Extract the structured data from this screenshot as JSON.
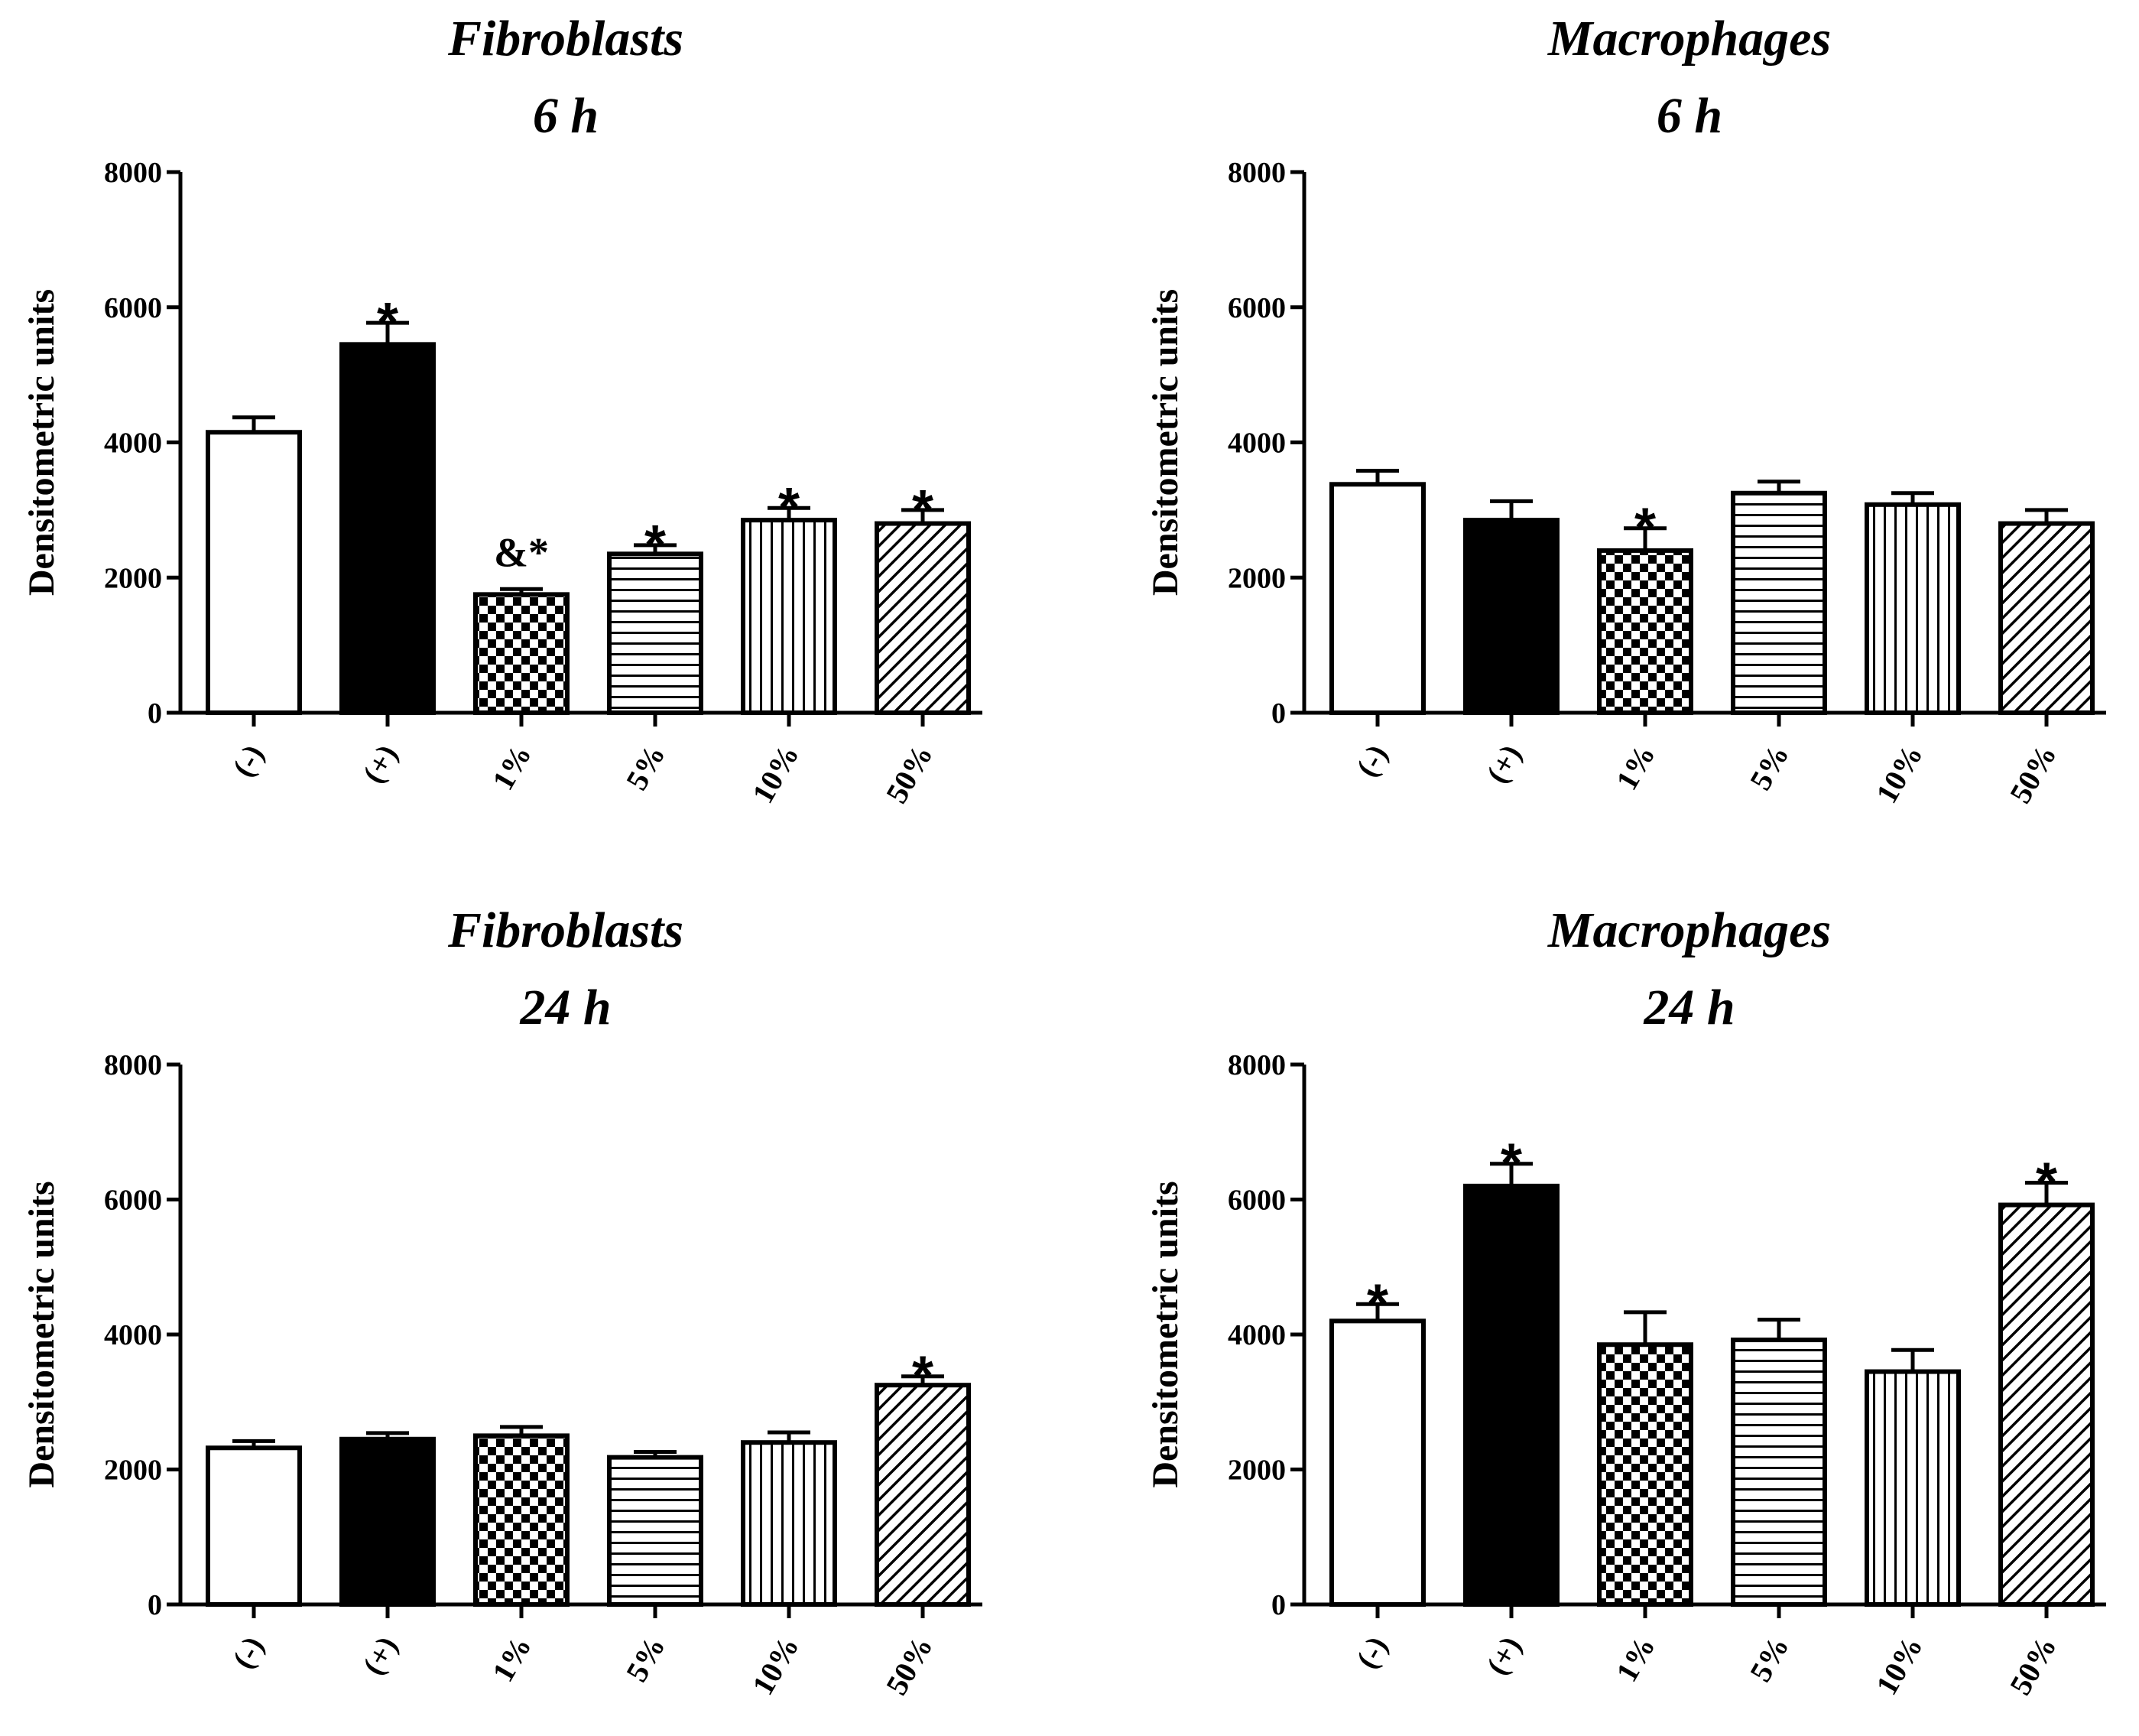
{
  "chart_data": [
    {
      "type": "bar",
      "title": [
        "Fibroblasts",
        "6 h"
      ],
      "ylabel": "Densitometric units",
      "xlabel": "",
      "ylim": [
        0,
        8000
      ],
      "yticks": [
        0,
        2000,
        4000,
        6000,
        8000
      ],
      "categories": [
        "(-)",
        "(+)",
        "1%",
        "5%",
        "10%",
        "50%"
      ],
      "values": [
        4150,
        5450,
        1750,
        2350,
        2850,
        2800
      ],
      "errors": [
        220,
        320,
        80,
        130,
        180,
        200
      ],
      "annotations": [
        "",
        "*",
        "&*",
        "*",
        "*",
        "*"
      ],
      "patterns": [
        "white",
        "black",
        "checker",
        "horizontal",
        "vertical",
        "diagonal"
      ]
    },
    {
      "type": "bar",
      "title": [
        "Macrophages",
        "6 h"
      ],
      "ylabel": "Densitometric units",
      "xlabel": "",
      "ylim": [
        0,
        8000
      ],
      "yticks": [
        0,
        2000,
        4000,
        6000,
        8000
      ],
      "categories": [
        "(-)",
        "(+)",
        "1%",
        "5%",
        "10%",
        "50%"
      ],
      "values": [
        3380,
        2850,
        2400,
        3250,
        3080,
        2800
      ],
      "errors": [
        200,
        280,
        330,
        170,
        170,
        200
      ],
      "annotations": [
        "",
        "",
        "*",
        "",
        "",
        ""
      ],
      "patterns": [
        "white",
        "black",
        "checker",
        "horizontal",
        "vertical",
        "diagonal"
      ]
    },
    {
      "type": "bar",
      "title": [
        "Fibroblasts",
        "24 h"
      ],
      "ylabel": "Densitometric units",
      "xlabel": "",
      "ylim": [
        0,
        8000
      ],
      "yticks": [
        0,
        2000,
        4000,
        6000,
        8000
      ],
      "categories": [
        "(-)",
        "(+)",
        "1%",
        "5%",
        "10%",
        "50%"
      ],
      "values": [
        2320,
        2450,
        2500,
        2180,
        2400,
        3250
      ],
      "errors": [
        100,
        90,
        130,
        80,
        150,
        130
      ],
      "annotations": [
        "",
        "",
        "",
        "",
        "",
        "*"
      ],
      "patterns": [
        "white",
        "black",
        "checker",
        "horizontal",
        "vertical",
        "diagonal"
      ]
    },
    {
      "type": "bar",
      "title": [
        "Macrophages",
        "24 h"
      ],
      "ylabel": "Densitometric units",
      "xlabel": "",
      "ylim": [
        0,
        8000
      ],
      "yticks": [
        0,
        2000,
        4000,
        6000,
        8000
      ],
      "categories": [
        "(-)",
        "(+)",
        "1%",
        "5%",
        "10%",
        "50%"
      ],
      "values": [
        4200,
        6200,
        3850,
        3920,
        3450,
        5920
      ],
      "errors": [
        250,
        330,
        480,
        300,
        320,
        330
      ],
      "annotations": [
        "*",
        "*",
        "",
        "",
        "",
        "*"
      ],
      "patterns": [
        "white",
        "black",
        "checker",
        "horizontal",
        "vertical",
        "diagonal"
      ]
    }
  ]
}
